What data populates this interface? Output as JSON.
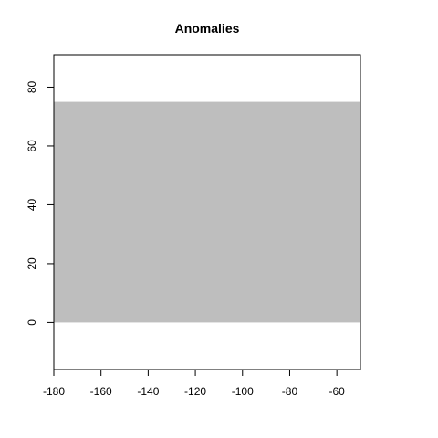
{
  "chart_data": {
    "type": "map",
    "title": "Anomalies",
    "xlabel": "",
    "ylabel": "",
    "xlim": [
      -180,
      -50
    ],
    "ylim": [
      -16,
      91
    ],
    "x_ticks": [
      -180,
      -160,
      -140,
      -120,
      -100,
      -80,
      -60
    ],
    "y_ticks": [
      0,
      20,
      40,
      60,
      80
    ],
    "x_tick_labels": [
      "-180",
      "-160",
      "-140",
      "-120",
      "-100",
      "-80",
      "-60"
    ],
    "y_tick_labels": [
      "0",
      "20",
      "40",
      "60",
      "80"
    ],
    "regions": [
      {
        "x_range": [
          -180,
          -50
        ],
        "y_range": [
          0,
          75
        ],
        "color": "#bebebe"
      }
    ],
    "grid": false,
    "legend": "none"
  }
}
